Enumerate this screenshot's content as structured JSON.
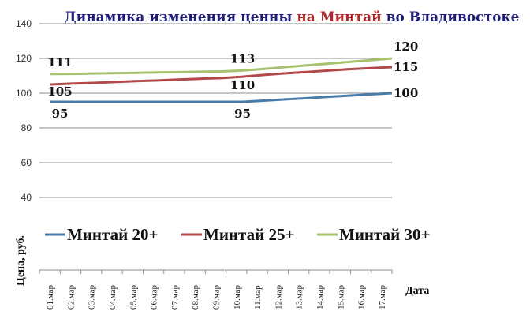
{
  "chart_data": {
    "type": "line",
    "title_parts": [
      {
        "text": "Динамика изменения ценны ",
        "color": "#1f1f7a"
      },
      {
        "text": "на Минтай",
        "color": "#b0282a"
      },
      {
        "text": " во Владивостоке",
        "color": "#1f1f7a"
      }
    ],
    "xlabel": "Дата",
    "ylabel": "Цена, руб.",
    "ylim": [
      40,
      140
    ],
    "yticks": [
      40,
      60,
      80,
      100,
      120,
      140
    ],
    "grid": "horizontal",
    "legend_position": "inside-bottom",
    "categories": [
      "01.мар",
      "02.мар",
      "03.мар",
      "04.мар",
      "05.мар",
      "06.мар",
      "07.мар",
      "08.мар",
      "09.мар",
      "10.мар",
      "11.мар",
      "12.мар",
      "13.мар",
      "14.мар",
      "15.мар",
      "16.мар",
      "17.мар"
    ],
    "series": [
      {
        "name": "Минтай 20+",
        "color": "#4a7aa8",
        "values": [
          95,
          95,
          95,
          95,
          95,
          95,
          95,
          95,
          95,
          95,
          95.7,
          96.4,
          97.1,
          97.9,
          98.6,
          99.3,
          100
        ]
      },
      {
        "name": "Минтай 25+",
        "color": "#b2494a",
        "values": [
          105,
          105.5,
          105.9,
          106.4,
          106.9,
          107.3,
          107.8,
          108.3,
          108.7,
          109.5,
          110.5,
          111.4,
          112.2,
          113,
          113.8,
          114.4,
          115
        ]
      },
      {
        "name": "Минтай 30+",
        "color": "#a7c16e",
        "values": [
          111,
          111.1,
          111.3,
          111.5,
          111.7,
          111.9,
          112.1,
          112.3,
          112.5,
          113,
          114,
          115,
          116,
          117,
          118,
          119,
          120
        ]
      }
    ],
    "data_labels": [
      {
        "series": 0,
        "index": 0,
        "text": "95"
      },
      {
        "series": 0,
        "index": 9,
        "text": "95"
      },
      {
        "series": 0,
        "index": 16,
        "text": "100"
      },
      {
        "series": 1,
        "index": 0,
        "text": "105"
      },
      {
        "series": 1,
        "index": 9,
        "text": "110"
      },
      {
        "series": 1,
        "index": 16,
        "text": "115"
      },
      {
        "series": 2,
        "index": 0,
        "text": "111"
      },
      {
        "series": 2,
        "index": 9,
        "text": "113"
      },
      {
        "series": 2,
        "index": 16,
        "text": "120"
      }
    ]
  }
}
